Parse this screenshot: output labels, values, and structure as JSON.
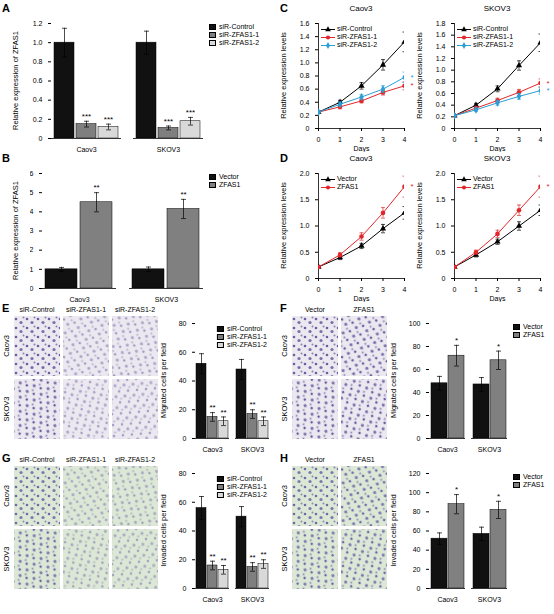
{
  "chart_data": [
    {
      "panel": "A",
      "type": "bar",
      "ylabel": "Relative expression of ZFAS1",
      "categories": [
        "Caov3",
        "SKOV3"
      ],
      "series": [
        {
          "name": "siR-Control",
          "color": "#111111",
          "values": [
            1.0,
            1.0
          ],
          "errors": [
            0.15,
            0.12
          ]
        },
        {
          "name": "siR-ZFAS1-1",
          "color": "#7f7f7f",
          "values": [
            0.15,
            0.11
          ],
          "errors": [
            0.03,
            0.02
          ],
          "annotations": [
            "***",
            "***"
          ]
        },
        {
          "name": "siR-ZFAS1-2",
          "color": "#d9d9d9",
          "values": [
            0.12,
            0.18
          ],
          "errors": [
            0.03,
            0.04
          ],
          "annotations": [
            "***",
            "***"
          ]
        }
      ],
      "ylim": [
        0,
        1.2
      ],
      "yticks": [
        0,
        0.2,
        0.4,
        0.6,
        0.8,
        {
          "value": 1,
          "label": "1.0"
        },
        1.2
      ],
      "legend": "right"
    },
    {
      "panel": "C",
      "type": "line",
      "title": "Caov3",
      "xlabel": "Days",
      "ylabel": "Relative expression levels",
      "x": [
        0,
        1,
        2,
        3,
        4
      ],
      "series": [
        {
          "name": "siR-Control",
          "color": "#000000",
          "marker": "triangle",
          "values": [
            0.25,
            0.4,
            0.65,
            0.97,
            1.32
          ],
          "errors": [
            0.02,
            0.03,
            0.05,
            0.08,
            0.15
          ]
        },
        {
          "name": "siR-ZFAS1-1",
          "color": "#e3262b",
          "marker": "circle",
          "values": [
            0.25,
            0.33,
            0.42,
            0.55,
            0.65
          ],
          "errors": [
            0.02,
            0.03,
            0.03,
            0.04,
            0.06
          ],
          "annotations": [
            null,
            null,
            null,
            null,
            "*"
          ]
        },
        {
          "name": "siR-ZFAS1-2",
          "color": "#2a9fd6",
          "marker": "diamond",
          "values": [
            0.25,
            0.37,
            0.48,
            0.6,
            0.78
          ],
          "errors": [
            0.02,
            0.03,
            0.04,
            0.05,
            0.08
          ],
          "annotations": [
            null,
            null,
            null,
            null,
            "*"
          ]
        }
      ],
      "xlim": [
        0,
        4
      ],
      "xticks": [
        0,
        1,
        2,
        3,
        4
      ],
      "ylim": [
        0,
        1.6
      ],
      "yticks": [
        0,
        0.2,
        0.4,
        0.6,
        0.8,
        {
          "value": 1,
          "label": "1.0"
        },
        1.2,
        1.4,
        1.6
      ],
      "legend": "top-left"
    },
    {
      "type": "line",
      "title": "SKOV3",
      "xlabel": "Days",
      "ylabel": "Relative expression levels",
      "x": [
        0,
        1,
        2,
        3,
        4
      ],
      "series": [
        {
          "name": "siR-Control",
          "color": "#000000",
          "marker": "triangle",
          "values": [
            0.22,
            0.4,
            0.68,
            1.08,
            1.47
          ],
          "errors": [
            0.02,
            0.03,
            0.05,
            0.08,
            0.15
          ]
        },
        {
          "name": "siR-ZFAS1-1",
          "color": "#e3262b",
          "marker": "circle",
          "values": [
            0.22,
            0.35,
            0.48,
            0.62,
            0.78
          ],
          "errors": [
            0.02,
            0.03,
            0.04,
            0.05,
            0.07
          ],
          "annotations": [
            null,
            null,
            null,
            null,
            "*"
          ]
        },
        {
          "name": "siR-ZFAS1-2",
          "color": "#2a9fd6",
          "marker": "diamond",
          "values": [
            0.22,
            0.32,
            0.44,
            0.55,
            0.65
          ],
          "errors": [
            0.02,
            0.03,
            0.04,
            0.05,
            0.06
          ],
          "annotations": [
            null,
            null,
            null,
            null,
            "*"
          ]
        }
      ],
      "xlim": [
        0,
        4
      ],
      "xticks": [
        0,
        1,
        2,
        3,
        4
      ],
      "ylim": [
        0,
        1.8
      ],
      "yticks": [
        0,
        0.2,
        0.4,
        0.6,
        0.8,
        {
          "value": 1,
          "label": "1.0"
        },
        1.2,
        1.4,
        1.6,
        1.8
      ],
      "legend": "top-left"
    },
    {
      "panel": "B",
      "type": "bar",
      "ylabel": "Relative expression of ZFAS1",
      "categories": [
        "Caov3",
        "SKOV3"
      ],
      "series": [
        {
          "name": "Vector",
          "color": "#111111",
          "values": [
            1,
            1
          ],
          "errors": [
            0.1,
            0.12
          ]
        },
        {
          "name": "ZFAS1",
          "color": "#808080",
          "values": [
            4.5,
            4.15
          ],
          "errors": [
            0.5,
            0.5
          ],
          "annotations": [
            "**",
            "**"
          ]
        }
      ],
      "ylim": [
        0,
        6
      ],
      "yticks": [
        0,
        1,
        2,
        3,
        4,
        5,
        6
      ],
      "legend": "right"
    },
    {
      "panel": "D",
      "type": "line",
      "title": "Caov3",
      "xlabel": "Days",
      "ylabel": "Relative expression levels",
      "x": [
        0,
        1,
        2,
        3,
        4
      ],
      "series": [
        {
          "name": "Vector",
          "color": "#000000",
          "marker": "triangle",
          "values": [
            0.22,
            0.4,
            0.62,
            0.95,
            1.25
          ],
          "errors": [
            0.02,
            0.04,
            0.05,
            0.08,
            0.12
          ]
        },
        {
          "name": "ZFAS1",
          "color": "#e3262b",
          "marker": "circle",
          "values": [
            0.22,
            0.45,
            0.8,
            1.25,
            1.75
          ],
          "errors": [
            0.02,
            0.04,
            0.07,
            0.1,
            0.2
          ],
          "annotations": [
            null,
            null,
            null,
            null,
            "*"
          ]
        }
      ],
      "xlim": [
        0,
        4
      ],
      "xticks": [
        0,
        1,
        2,
        3,
        4
      ],
      "ylim": [
        0,
        2
      ],
      "yticks": [
        0,
        0.5,
        {
          "value": 1,
          "label": "1.0"
        },
        1.5,
        {
          "value": 2,
          "label": "2.0"
        }
      ],
      "legend": "top-left"
    },
    {
      "type": "line",
      "title": "SKOV3",
      "xlabel": "Days",
      "ylabel": "Relative expression levels",
      "x": [
        0,
        1,
        2,
        3,
        4
      ],
      "series": [
        {
          "name": "Vector",
          "color": "#000000",
          "marker": "triangle",
          "values": [
            0.22,
            0.45,
            0.7,
            1.0,
            1.3
          ],
          "errors": [
            0.02,
            0.04,
            0.05,
            0.08,
            0.1
          ]
        },
        {
          "name": "ZFAS1",
          "color": "#e3262b",
          "marker": "circle",
          "values": [
            0.22,
            0.5,
            0.85,
            1.3,
            1.75
          ],
          "errors": [
            0.02,
            0.04,
            0.07,
            0.1,
            0.2
          ],
          "annotations": [
            null,
            null,
            null,
            null,
            "*"
          ]
        }
      ],
      "xlim": [
        0,
        4
      ],
      "xticks": [
        0,
        1,
        2,
        3,
        4
      ],
      "ylim": [
        0,
        2
      ],
      "yticks": [
        0,
        0.5,
        {
          "value": 1,
          "label": "1.0"
        },
        1.5,
        {
          "value": 2,
          "label": "2.0"
        }
      ],
      "legend": "top-left"
    },
    {
      "panel": "E",
      "type": "bar",
      "ylabel": "Migrated cells per field",
      "images": {
        "columns": [
          "siR-Control",
          "siR-ZFAS1-1",
          "siR-ZFAS1-2"
        ],
        "rows": [
          "Caov3",
          "SKOV3"
        ]
      },
      "categories": [
        "Caov3",
        "SKOV3"
      ],
      "series": [
        {
          "name": "siR-Control",
          "color": "#111111",
          "values": [
            52,
            48
          ],
          "errors": [
            7,
            7
          ]
        },
        {
          "name": "siR-ZFAS1-1",
          "color": "#7f7f7f",
          "values": [
            15,
            17
          ],
          "errors": [
            3,
            3
          ],
          "annotations": [
            "**",
            "**"
          ]
        },
        {
          "name": "siR-ZFAS1-2",
          "color": "#d9d9d9",
          "values": [
            12,
            12
          ],
          "errors": [
            3,
            3
          ],
          "annotations": [
            "**",
            "**"
          ]
        }
      ],
      "ylim": [
        0,
        80
      ],
      "yticks": [
        0,
        20,
        40,
        60,
        80
      ],
      "legend": "top-right"
    },
    {
      "panel": "F",
      "type": "bar",
      "ylabel": "Migrated cells per field",
      "images": {
        "columns": [
          "Vector",
          "ZFAS1"
        ],
        "rows": [
          "Caov3",
          "SKOV3"
        ]
      },
      "categories": [
        "Caov3",
        "SKOV3"
      ],
      "series": [
        {
          "name": "Vector",
          "color": "#111111",
          "values": [
            48,
            47
          ],
          "errors": [
            6,
            6
          ]
        },
        {
          "name": "ZFAS1",
          "color": "#808080",
          "values": [
            72,
            68
          ],
          "errors": [
            9,
            8
          ],
          "annotations": [
            "*",
            "*"
          ]
        }
      ],
      "ylim": [
        0,
        100
      ],
      "yticks": [
        0,
        20,
        40,
        60,
        80,
        100
      ],
      "legend": "right"
    },
    {
      "panel": "G",
      "type": "bar",
      "ylabel": "Invaded cells per field",
      "images": {
        "columns": [
          "siR-Control",
          "siR-ZFAS1-1",
          "siR-ZFAS1-2"
        ],
        "rows": [
          "Caov3",
          "SKOV3"
        ]
      },
      "categories": [
        "Caov3",
        "SKOV3"
      ],
      "series": [
        {
          "name": "siR-Control",
          "color": "#111111",
          "values": [
            56,
            50
          ],
          "errors": [
            8,
            7
          ]
        },
        {
          "name": "siR-ZFAS1-1",
          "color": "#7f7f7f",
          "values": [
            16,
            15
          ],
          "errors": [
            3,
            3
          ],
          "annotations": [
            "**",
            "**"
          ]
        },
        {
          "name": "siR-ZFAS1-2",
          "color": "#d9d9d9",
          "values": [
            13,
            17
          ],
          "errors": [
            3,
            3
          ],
          "annotations": [
            "**",
            "**"
          ]
        }
      ],
      "ylim": [
        0,
        80
      ],
      "yticks": [
        0,
        20,
        40,
        60,
        80
      ],
      "legend": "top-right"
    },
    {
      "panel": "H",
      "type": "bar",
      "ylabel": "Invaded cells per field",
      "images": {
        "columns": [
          "Vector",
          "ZFAS1"
        ],
        "rows": [
          "Caov3",
          "SKOV3"
        ]
      },
      "categories": [
        "Caov3",
        "SKOV3"
      ],
      "series": [
        {
          "name": "Vector",
          "color": "#111111",
          "values": [
            52,
            57
          ],
          "errors": [
            6,
            7
          ]
        },
        {
          "name": "ZFAS1",
          "color": "#808080",
          "values": [
            88,
            82
          ],
          "errors": [
            10,
            9
          ],
          "annotations": [
            "*",
            "*"
          ]
        }
      ],
      "ylim": [
        0,
        120
      ],
      "yticks": [
        0,
        20,
        40,
        60,
        80,
        100,
        120
      ],
      "legend": "right"
    }
  ]
}
